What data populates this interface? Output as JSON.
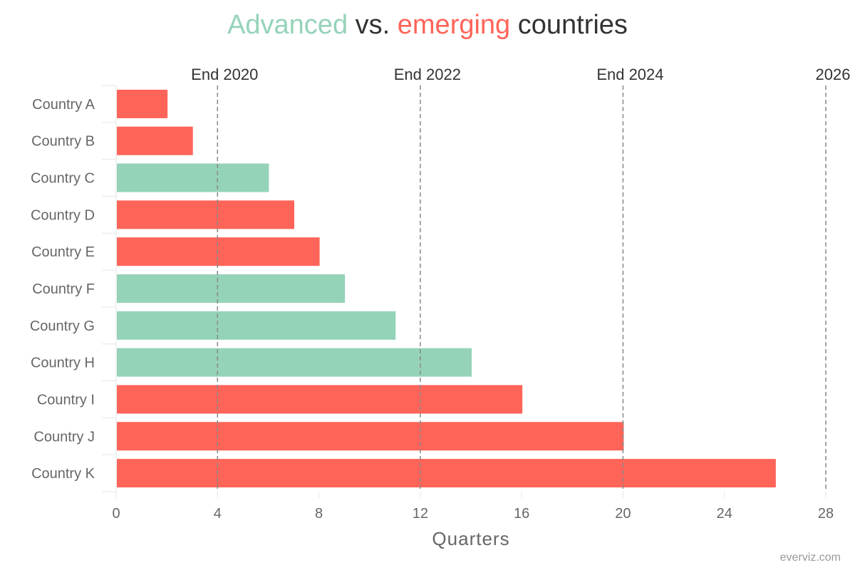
{
  "title_parts": [
    {
      "text": "Advanced",
      "color": "#95d3b9"
    },
    {
      "text": " vs. ",
      "color": "#333333"
    },
    {
      "text": "emerging",
      "color": "#ff6459"
    },
    {
      "text": " countries",
      "color": "#333333"
    }
  ],
  "credits": "everviz.com",
  "colors": {
    "advanced": "#95d3b9",
    "emerging": "#ff6459",
    "grid": "#888888",
    "axis": "#e6e6e6"
  },
  "chart_data": {
    "type": "bar",
    "orientation": "horizontal",
    "title": "Advanced vs. emerging countries",
    "xlabel": "Quarters",
    "ylabel": "",
    "xlim": [
      0,
      28
    ],
    "xticks": [
      0,
      4,
      8,
      12,
      16,
      20,
      24,
      28
    ],
    "categories": [
      "Country A",
      "Country B",
      "Country C",
      "Country D",
      "Country E",
      "Country F",
      "Country G",
      "Country H",
      "Country I",
      "Country J",
      "Country K"
    ],
    "values": [
      2,
      3,
      6,
      7,
      8,
      9,
      11,
      14,
      16,
      20,
      26
    ],
    "groups": [
      "emerging",
      "emerging",
      "advanced",
      "emerging",
      "emerging",
      "advanced",
      "advanced",
      "advanced",
      "emerging",
      "emerging",
      "emerging"
    ],
    "plot_lines": [
      {
        "value": 4,
        "label": "End 2020"
      },
      {
        "value": 12,
        "label": "End 2022"
      },
      {
        "value": 20,
        "label": "End 2024"
      },
      {
        "value": 28,
        "label": "2026"
      }
    ],
    "grid": false,
    "legend": "none"
  }
}
